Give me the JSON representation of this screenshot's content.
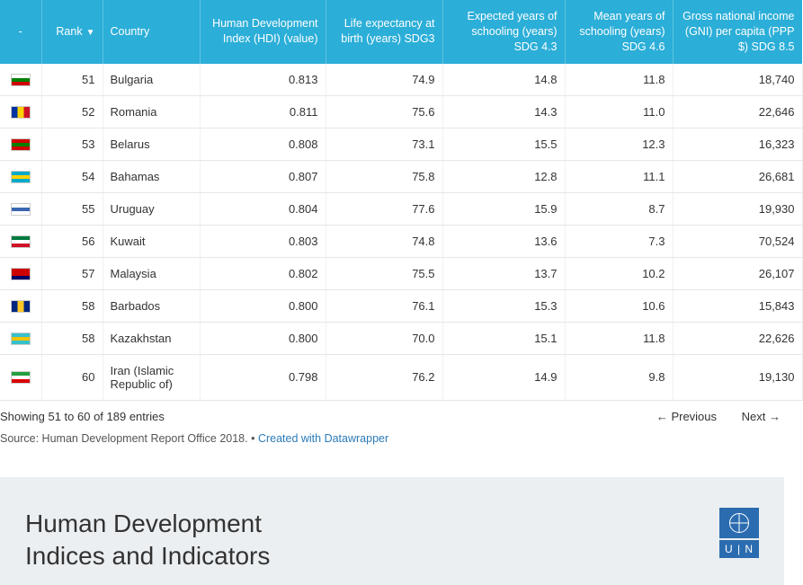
{
  "table": {
    "header_bg": "#2baed8",
    "columns": [
      {
        "key": "flag",
        "label": "-",
        "class": "col-flag"
      },
      {
        "key": "rank",
        "label": "Rank",
        "class": "col-rank",
        "sorted": true
      },
      {
        "key": "country",
        "label": "Country",
        "class": "col-country"
      },
      {
        "key": "hdi",
        "label": "Human Development Index (HDI) (value)",
        "class": "col-hdi"
      },
      {
        "key": "life",
        "label": "Life expectancy at birth (years) SDG3",
        "class": "col-life"
      },
      {
        "key": "expsch",
        "label": "Expected years of schooling (years) SDG 4.3",
        "class": "col-expsch"
      },
      {
        "key": "meysch",
        "label": "Mean years of schooling (years) SDG 4.6",
        "class": "col-meysch"
      },
      {
        "key": "gni",
        "label": "Gross national income (GNI) per capita (PPP $) SDG 8.5",
        "class": "col-gni"
      }
    ],
    "rows": [
      {
        "flag": [
          "#ffffff",
          "#008000",
          "#d00000"
        ],
        "flag_dir": "h",
        "rank": "51",
        "country": "Bulgaria",
        "hdi": "0.813",
        "life": "74.9",
        "expsch": "14.8",
        "meysch": "11.8",
        "gni": "18,740"
      },
      {
        "flag": [
          "#0033a0",
          "#ffd100",
          "#ce1126"
        ],
        "flag_dir": "v",
        "rank": "52",
        "country": "Romania",
        "hdi": "0.811",
        "life": "75.6",
        "expsch": "14.3",
        "meysch": "11.0",
        "gni": "22,646"
      },
      {
        "flag": [
          "#d00000",
          "#008000",
          "#d00000"
        ],
        "flag_dir": "h",
        "rank": "53",
        "country": "Belarus",
        "hdi": "0.808",
        "life": "73.1",
        "expsch": "15.5",
        "meysch": "12.3",
        "gni": "16,323"
      },
      {
        "flag": [
          "#00abc9",
          "#ffd100",
          "#00abc9"
        ],
        "flag_dir": "h",
        "rank": "54",
        "country": "Bahamas",
        "hdi": "0.807",
        "life": "75.8",
        "expsch": "12.8",
        "meysch": "11.1",
        "gni": "26,681"
      },
      {
        "flag": [
          "#ffffff",
          "#3a67b1",
          "#ffffff"
        ],
        "flag_dir": "h",
        "rank": "55",
        "country": "Uruguay",
        "hdi": "0.804",
        "life": "77.6",
        "expsch": "15.9",
        "meysch": "8.7",
        "gni": "19,930"
      },
      {
        "flag": [
          "#007a3d",
          "#ffffff",
          "#ce1126"
        ],
        "flag_dir": "h",
        "rank": "56",
        "country": "Kuwait",
        "hdi": "0.803",
        "life": "74.8",
        "expsch": "13.6",
        "meysch": "7.3",
        "gni": "70,524"
      },
      {
        "flag": [
          "#cc0000",
          "#cc0000",
          "#000066"
        ],
        "flag_dir": "h",
        "rank": "57",
        "country": "Malaysia",
        "hdi": "0.802",
        "life": "75.5",
        "expsch": "13.7",
        "meysch": "10.2",
        "gni": "26,107"
      },
      {
        "flag": [
          "#00267f",
          "#ffc726",
          "#00267f"
        ],
        "flag_dir": "v",
        "rank": "58",
        "country": "Barbados",
        "hdi": "0.800",
        "life": "76.1",
        "expsch": "15.3",
        "meysch": "10.6",
        "gni": "15,843"
      },
      {
        "flag": [
          "#36c1cd",
          "#f3c300",
          "#36c1cd"
        ],
        "flag_dir": "h",
        "rank": "58",
        "country": "Kazakhstan",
        "hdi": "0.800",
        "life": "70.0",
        "expsch": "15.1",
        "meysch": "11.8",
        "gni": "22,626"
      },
      {
        "flag": [
          "#239f40",
          "#ffffff",
          "#da0000"
        ],
        "flag_dir": "h",
        "rank": "60",
        "country": "Iran (Islamic Republic of)",
        "hdi": "0.798",
        "life": "76.2",
        "expsch": "14.9",
        "meysch": "9.8",
        "gni": "19,130"
      }
    ]
  },
  "footer": {
    "showing": "Showing 51 to 60 of 189 entries",
    "prev": "← Previous",
    "next": "Next →"
  },
  "source": {
    "text": "Source: Human Development Report Office 2018. • ",
    "link": "Created with Datawrapper"
  },
  "banner": {
    "title_line1": "Human Development",
    "title_line2": "Indices and Indicators",
    "logo_text": "U | N"
  }
}
